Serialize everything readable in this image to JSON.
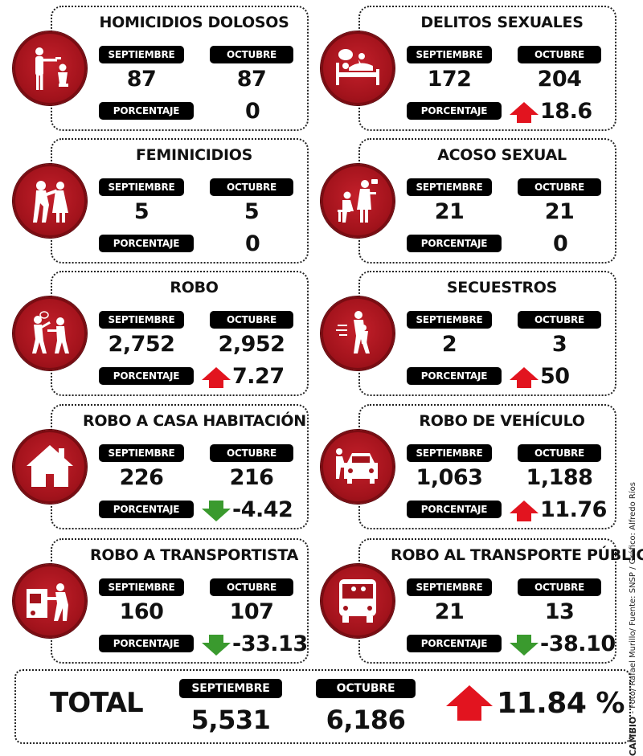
{
  "labels": {
    "sep": "SEPTIEMBRE",
    "oct": "OCTUBRE",
    "pct": "PORCENTAJE"
  },
  "cards": [
    {
      "id": "homicidios",
      "title": "HOMICIDIOS DOLOSOS",
      "icon": "gun-threat-icon",
      "sep": "87",
      "oct": "87",
      "pct": "0",
      "trend": "none"
    },
    {
      "id": "delitos-sexuales",
      "title": "DELITOS SEXUALES",
      "icon": "bed-assault-icon",
      "sep": "172",
      "oct": "204",
      "pct": "18.6",
      "trend": "up"
    },
    {
      "id": "feminicidios",
      "title": "FEMINICIDIOS",
      "icon": "strike-woman-icon",
      "sep": "5",
      "oct": "5",
      "pct": "0",
      "trend": "none"
    },
    {
      "id": "acoso-sexual",
      "title": "ACOSO SEXUAL",
      "icon": "harassment-icon",
      "sep": "21",
      "oct": "21",
      "pct": "0",
      "trend": "none"
    },
    {
      "id": "robo",
      "title": "ROBO",
      "icon": "robbery-icon",
      "sep": "2,752",
      "oct": "2,952",
      "pct": "7.27",
      "trend": "up"
    },
    {
      "id": "secuestros",
      "title": "SECUESTROS",
      "icon": "kidnap-icon",
      "sep": "2",
      "oct": "3",
      "pct": "50",
      "trend": "up"
    },
    {
      "id": "robo-casa",
      "title": "ROBO A CASA HABITACIÓN",
      "icon": "house-icon",
      "sep": "226",
      "oct": "216",
      "pct": "-4.42",
      "trend": "down"
    },
    {
      "id": "robo-vehiculo",
      "title": "ROBO DE VEHÍCULO",
      "icon": "car-theft-icon",
      "sep": "1,063",
      "oct": "1,188",
      "pct": "11.76",
      "trend": "up"
    },
    {
      "id": "robo-transportista",
      "title": "ROBO A TRANSPORTISTA",
      "icon": "truck-theft-icon",
      "sep": "160",
      "oct": "107",
      "pct": "-33.13",
      "trend": "down"
    },
    {
      "id": "robo-transporte-publico",
      "title": "ROBO AL TRANSPORTE PÚBLICO",
      "icon": "bus-icon",
      "sep": "21",
      "oct": "13",
      "pct": "-38.10",
      "trend": "down"
    }
  ],
  "total": {
    "label": "TOTAL",
    "sep": "5,531",
    "oct": "6,186",
    "pct": "11.84 %",
    "trend": "up"
  },
  "credit": {
    "brand": "CAMBIO",
    "text": "- Foto/ Rafael Murillo/ Fuente: SNSP / Gráfico: Alfredo Ríos"
  },
  "colors": {
    "badge": "#a3131c",
    "up": "#e2141f",
    "down": "#3a9a2e"
  }
}
